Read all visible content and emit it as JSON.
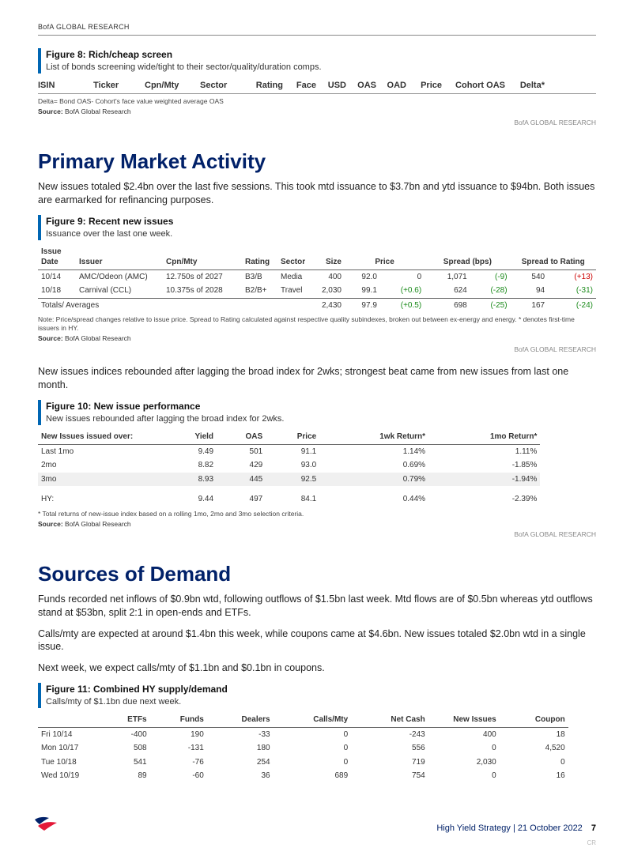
{
  "top_header": "BofA GLOBAL RESEARCH",
  "attribution": "BofA GLOBAL RESEARCH",
  "figure8": {
    "title": "Figure 8: Rich/cheap screen",
    "subtitle": "List of bonds screening wide/tight to their sector/quality/duration comps.",
    "columns": [
      "ISIN",
      "Ticker",
      "Cpn/Mty",
      "Sector",
      "Rating",
      "Face",
      "USD",
      "OAS",
      "OAD",
      "Price",
      "Cohort OAS",
      "Delta*"
    ],
    "note": "Delta= Bond OAS- Cohort's face value weighted average OAS",
    "source": "BofA Global Research"
  },
  "primary_heading": "Primary Market Activity",
  "primary_body": "New issues totaled $2.4bn over the last five sessions. This took mtd issuance to $3.7bn and ytd issuance to $94bn. Both issues are earmarked for refinancing purposes.",
  "figure9": {
    "title": "Figure 9: Recent new issues",
    "subtitle": "Issuance over the last one week.",
    "headers": {
      "issue_date": "Issue Date",
      "issuer": "Issuer",
      "cpn": "Cpn/Mty",
      "rating": "Rating",
      "sector": "Sector",
      "size": "Size",
      "price": "Price",
      "spread_bps": "Spread (bps)",
      "spread_rating": "Spread to Rating"
    },
    "rows": [
      {
        "date": "10/14",
        "issuer": "AMC/Odeon (AMC)",
        "cpn": "12.750s of 2027",
        "rating": "B3/B",
        "sector": "Media",
        "size": "400",
        "price": "92.0",
        "price_chg": "0",
        "spread": "1,071",
        "spread_chg": "(-9)",
        "sr": "540",
        "sr_chg": "(+13)",
        "chg_color": "#1a8a1a",
        "sr_color": "#cc0000"
      },
      {
        "date": "10/18",
        "issuer": "Carnival (CCL)",
        "cpn": "10.375s of 2028",
        "rating": "B2/B+",
        "sector": "Travel",
        "size": "2,030",
        "price": "99.1",
        "price_chg": "(+0.6)",
        "spread": "624",
        "spread_chg": "(-28)",
        "sr": "94",
        "sr_chg": "(-31)",
        "chg_color": "#1a8a1a",
        "sr_color": "#1a8a1a"
      }
    ],
    "totals_label": "Totals/ Averages",
    "totals": {
      "size": "2,430",
      "price": "97.9",
      "price_chg": "(+0.5)",
      "spread": "698",
      "spread_chg": "(-25)",
      "sr": "167",
      "sr_chg": "(-24)"
    },
    "note": "Note: Price/spread changes relative to issue price. Spread to Rating calculated against respective quality subindexes, broken out between ex-energy and energy. * denotes first-time issuers in HY.",
    "source": "BofA Global Research"
  },
  "newissue_body": "New issues indices rebounded after lagging the broad index for 2wks; strongest beat came from new issues from last one month.",
  "figure10": {
    "title": "Figure 10: New issue performance",
    "subtitle": "New issues rebounded after lagging the broad index for 2wks.",
    "headers": {
      "period": "New Issues issued over:",
      "yield": "Yield",
      "oas": "OAS",
      "price": "Price",
      "wk": "1wk Return*",
      "mo": "1mo Return*"
    },
    "rows": [
      {
        "period": "Last 1mo",
        "yield": "9.49",
        "oas": "501",
        "price": "91.1",
        "wk": "1.14%",
        "mo": "1.11%",
        "stripe": false
      },
      {
        "period": "2mo",
        "yield": "8.82",
        "oas": "429",
        "price": "93.0",
        "wk": "0.69%",
        "mo": "-1.85%",
        "stripe": false
      },
      {
        "period": "3mo",
        "yield": "8.93",
        "oas": "445",
        "price": "92.5",
        "wk": "0.79%",
        "mo": "-1.94%",
        "stripe": true
      }
    ],
    "hy_label": "HY:",
    "hy": {
      "yield": "9.44",
      "oas": "497",
      "price": "84.1",
      "wk": "0.44%",
      "mo": "-2.39%"
    },
    "note": "* Total returns of new-issue index based on a rolling 1mo, 2mo and 3mo selection criteria.",
    "source": "BofA Global Research"
  },
  "sources_heading": "Sources of Demand",
  "sources_p1": "Funds recorded net inflows of $0.9bn wtd, following outflows of $1.5bn last week. Mtd flows are of $0.5bn whereas ytd outflows stand at $53bn, split 2:1 in open-ends and ETFs.",
  "sources_p2": "Calls/mty are expected at around $1.4bn this week, while coupons came at $4.6bn. New issues totaled $2.0bn wtd in a single issue.",
  "sources_p3": "Next week, we expect calls/mty of $1.1bn and $0.1bn in coupons.",
  "figure11": {
    "title": "Figure 11: Combined HY supply/demand",
    "subtitle": "Calls/mty of $1.1bn due next week.",
    "headers": {
      "blank": "",
      "etfs": "ETFs",
      "funds": "Funds",
      "dealers": "Dealers",
      "calls": "Calls/Mty",
      "net": "Net Cash",
      "new": "New Issues",
      "coupon": "Coupon"
    },
    "rows": [
      {
        "day": "Fri 10/14",
        "etfs": "-400",
        "funds": "190",
        "dealers": "-33",
        "calls": "0",
        "net": "-243",
        "new": "400",
        "coupon": "18"
      },
      {
        "day": "Mon 10/17",
        "etfs": "508",
        "funds": "-131",
        "dealers": "180",
        "calls": "0",
        "net": "556",
        "new": "0",
        "coupon": "4,520"
      },
      {
        "day": "Tue 10/18",
        "etfs": "541",
        "funds": "-76",
        "dealers": "254",
        "calls": "0",
        "net": "719",
        "new": "2,030",
        "coupon": "0"
      },
      {
        "day": "Wed 10/19",
        "etfs": "89",
        "funds": "-60",
        "dealers": "36",
        "calls": "689",
        "net": "754",
        "new": "0",
        "coupon": "16"
      }
    ]
  },
  "footer": {
    "doc": "High Yield Strategy | 21 October 2022",
    "page": "7",
    "cr": "CR"
  },
  "logo_colors": {
    "top": "#012169",
    "bottom": "#e31837"
  }
}
